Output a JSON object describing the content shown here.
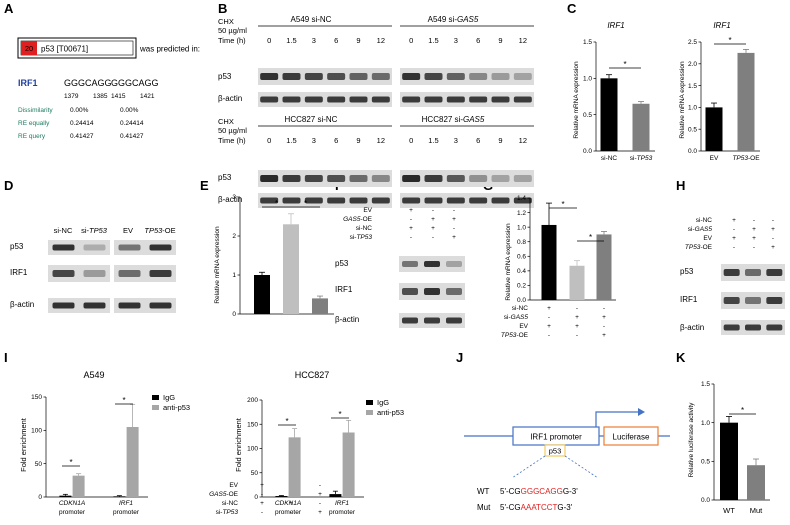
{
  "panels": {
    "A": "A",
    "B": "B",
    "C": "C",
    "D": "D",
    "E": "E",
    "F": "F",
    "G": "G",
    "H": "H",
    "I": "I",
    "J": "J",
    "K": "K"
  },
  "panel_a": {
    "badge_score": "20",
    "tf_label": "p53 [T00671]",
    "predicted_text": "was predicted in:",
    "gene": "IRF1",
    "seq1": "GGGCAGG",
    "seq2": "GGGCAGG",
    "pos": [
      "1379",
      "1385",
      "1415",
      "1421"
    ],
    "rows": [
      {
        "label": "Dissimilarity",
        "v1": "0.00%",
        "v2": "0.00%"
      },
      {
        "label": "RE equally",
        "v1": "0.24414",
        "v2": "0.24414"
      },
      {
        "label": "RE query",
        "v1": "0.41427",
        "v2": "0.41427"
      }
    ]
  },
  "panel_b": {
    "cond1": "CHX",
    "cond2": "50 µg/ml",
    "time_label": "Time (h)",
    "times": [
      "0",
      "1.5",
      "3",
      "6",
      "9",
      "12"
    ],
    "blots": [
      {
        "title": "A549 si-NC"
      },
      {
        "title_prefix": "A549 si-",
        "title_gene": "GAS5"
      },
      {
        "title": "HCC827 si-NC"
      },
      {
        "title_prefix": "HCC827 si-",
        "title_gene": "GAS5"
      }
    ],
    "rows": [
      "p53",
      "β-actin"
    ]
  },
  "panel_c": {
    "title": "IRF1",
    "ylabel": "Relative mRNA expression",
    "star": "*",
    "left": {
      "ticks": [
        "0.0",
        "0.5",
        "1.0",
        "1.5"
      ],
      "cat1": "si-NC",
      "cat2_prefix": "si-",
      "cat2_gene": "TP53"
    },
    "right": {
      "ticks": [
        "0.0",
        "0.5",
        "1.0",
        "1.5",
        "2.0",
        "2.5"
      ],
      "cat1": "EV",
      "cat2_gene": "TP53",
      "cat2_suffix": "-OE"
    }
  },
  "panel_d": {
    "cols1": [
      "si-NC",
      "si-"
    ],
    "tp53": "TP53",
    "ev": "EV",
    "oe": "-OE",
    "rows": [
      "p53",
      "IRF1",
      "β-actin"
    ]
  },
  "panel_e": {
    "ylabel": "Relative mRNA expression",
    "ticks": [
      "0",
      "1",
      "2",
      "3"
    ],
    "rows": [
      {
        "label": "EV",
        "signs": [
          "+",
          "-",
          "-"
        ]
      },
      {
        "label_gene": "GAS5",
        "label_suffix": "-OE",
        "signs": [
          "-",
          "+",
          "+"
        ]
      },
      {
        "label": "si-NC",
        "signs": [
          "+",
          "+",
          "-"
        ]
      },
      {
        "label_prefix": "si-",
        "label_gene": "TP53",
        "signs": [
          "-",
          "-",
          "+"
        ]
      }
    ]
  },
  "panel_f": {
    "rows": [
      {
        "label": "EV",
        "signs": [
          "+",
          "-",
          "-"
        ]
      },
      {
        "label_gene": "GAS5",
        "label_suffix": "-OE",
        "signs": [
          "-",
          "+",
          "+"
        ]
      },
      {
        "label": "si-NC",
        "signs": [
          "+",
          "+",
          "-"
        ]
      },
      {
        "label_prefix": "si-",
        "label_gene": "TP53",
        "signs": [
          "-",
          "-",
          "+"
        ]
      }
    ],
    "blots": [
      "p53",
      "IRF1",
      "β-actin"
    ]
  },
  "panel_g": {
    "ylabel": "Relative mRNA expression",
    "ticks": [
      "0.0",
      "0.2",
      "0.4",
      "0.6",
      "0.8",
      "1.0",
      "1.2",
      "1.4"
    ],
    "rows": [
      {
        "label": "si-NC",
        "signs": [
          "+",
          "-",
          "-"
        ]
      },
      {
        "label_prefix": "si-",
        "label_gene": "GAS5",
        "signs": [
          "-",
          "+",
          "+"
        ]
      },
      {
        "label": "EV",
        "signs": [
          "+",
          "+",
          "-"
        ]
      },
      {
        "label_gene": "TP53",
        "label_suffix": "-OE",
        "signs": [
          "-",
          "-",
          "+"
        ]
      }
    ]
  },
  "panel_h": {
    "rows": [
      {
        "label": "si-NC",
        "signs": [
          "+",
          "-",
          "-"
        ]
      },
      {
        "label_prefix": "si-",
        "label_gene": "GAS5",
        "signs": [
          "-",
          "+",
          "+"
        ]
      },
      {
        "label": "EV",
        "signs": [
          "+",
          "+",
          "-"
        ]
      },
      {
        "label_gene": "TP53",
        "label_suffix": "-OE",
        "signs": [
          "-",
          "-",
          "+"
        ]
      }
    ],
    "blots": [
      "p53",
      "IRF1",
      "β-actin"
    ]
  },
  "panel_i": {
    "ylabel": "Fold enrichment",
    "legend": [
      "IgG",
      "anti-p53"
    ],
    "promoter": "promoter",
    "genes": [
      "CDKN1A",
      "IRF1"
    ],
    "left": {
      "title": "A549",
      "ticks": [
        "0",
        "50",
        "100",
        "150"
      ]
    },
    "right": {
      "title": "HCC827",
      "ticks": [
        "0",
        "50",
        "100",
        "150",
        "200"
      ]
    }
  },
  "panel_j": {
    "promoter": "IRF1 promoter",
    "luciferase": "Luciferase",
    "p53": "p53",
    "wt": {
      "label": "WT",
      "pre": "5'-CG",
      "site": "GGGCAGG",
      "post": "G-3'"
    },
    "mut": {
      "label": "Mut",
      "pre": "5'-CG",
      "site": "AAATCCT",
      "post": "G-3'"
    }
  },
  "panel_k": {
    "ylabel": "Relative luciferase activity",
    "ticks": [
      "0.0",
      "0.5",
      "1.0",
      "1.5"
    ],
    "cats": [
      "WT",
      "Mut"
    ]
  },
  "colors": {
    "dark": "#000000",
    "gray": "#7f7f7f",
    "light": "#bfbfbf",
    "red": "#e02020",
    "blue": "#4472c4",
    "orange": "#ed7d31"
  },
  "chart_data": [
    {
      "type": "bar",
      "panel": "C-left",
      "title": "IRF1",
      "ylabel": "Relative mRNA expression",
      "categories": [
        "si-NC",
        "si-TP53"
      ],
      "values": [
        1.0,
        0.65
      ],
      "errors": [
        0.05,
        0.03
      ],
      "ylim": [
        0,
        1.5
      ],
      "colors": [
        "#000000",
        "#7f7f7f"
      ]
    },
    {
      "type": "bar",
      "panel": "C-right",
      "title": "IRF1",
      "ylabel": "Relative mRNA expression",
      "categories": [
        "EV",
        "TP53-OE"
      ],
      "values": [
        1.0,
        2.25
      ],
      "errors": [
        0.1,
        0.08
      ],
      "ylim": [
        0,
        2.5
      ],
      "colors": [
        "#000000",
        "#7f7f7f"
      ]
    },
    {
      "type": "bar",
      "panel": "E",
      "ylabel": "Relative mRNA expression",
      "categories": [
        "EV + si-NC",
        "GAS5-OE + si-NC",
        "GAS5-OE + si-TP53"
      ],
      "values": [
        1.0,
        2.3,
        0.4
      ],
      "errors": [
        0.07,
        0.27,
        0.06
      ],
      "ylim": [
        0,
        3
      ],
      "colors": [
        "#000000",
        "#bfbfbf",
        "#7f7f7f"
      ]
    },
    {
      "type": "bar",
      "panel": "G",
      "ylabel": "Relative mRNA expression",
      "categories": [
        "si-NC + EV",
        "si-GAS5 + EV",
        "si-GAS5 + TP53-OE"
      ],
      "values": [
        1.03,
        0.47,
        0.9
      ],
      "errors": [
        0.3,
        0.07,
        0.04
      ],
      "ylim": [
        0,
        1.4
      ],
      "colors": [
        "#000000",
        "#bfbfbf",
        "#7f7f7f"
      ]
    },
    {
      "type": "bar",
      "panel": "I-left",
      "title": "A549",
      "ylabel": "Fold enrichment",
      "categories": [
        "CDKN1A promoter",
        "IRF1 promoter"
      ],
      "series": [
        {
          "name": "IgG",
          "values": [
            2,
            1
          ],
          "errors": [
            2,
            1
          ]
        },
        {
          "name": "anti-p53",
          "values": [
            32,
            105
          ],
          "errors": [
            3,
            34
          ]
        }
      ],
      "ylim": [
        0,
        150
      ],
      "colors": [
        "#000000",
        "#a6a6a6"
      ]
    },
    {
      "type": "bar",
      "panel": "I-right",
      "title": "HCC827",
      "ylabel": "Fold enrichment",
      "categories": [
        "CDKN1A promoter",
        "IRF1 promoter"
      ],
      "series": [
        {
          "name": "IgG",
          "values": [
            2,
            6
          ],
          "errors": [
            1,
            6
          ]
        },
        {
          "name": "anti-p53",
          "values": [
            123,
            133
          ],
          "errors": [
            18,
            25
          ]
        }
      ],
      "ylim": [
        0,
        200
      ],
      "colors": [
        "#000000",
        "#a6a6a6"
      ]
    },
    {
      "type": "bar",
      "panel": "K",
      "ylabel": "Relative luciferase activity",
      "categories": [
        "WT",
        "Mut"
      ],
      "values": [
        1.0,
        0.45
      ],
      "errors": [
        0.08,
        0.08
      ],
      "ylim": [
        0,
        1.5
      ],
      "colors": [
        "#000000",
        "#7f7f7f"
      ]
    }
  ]
}
